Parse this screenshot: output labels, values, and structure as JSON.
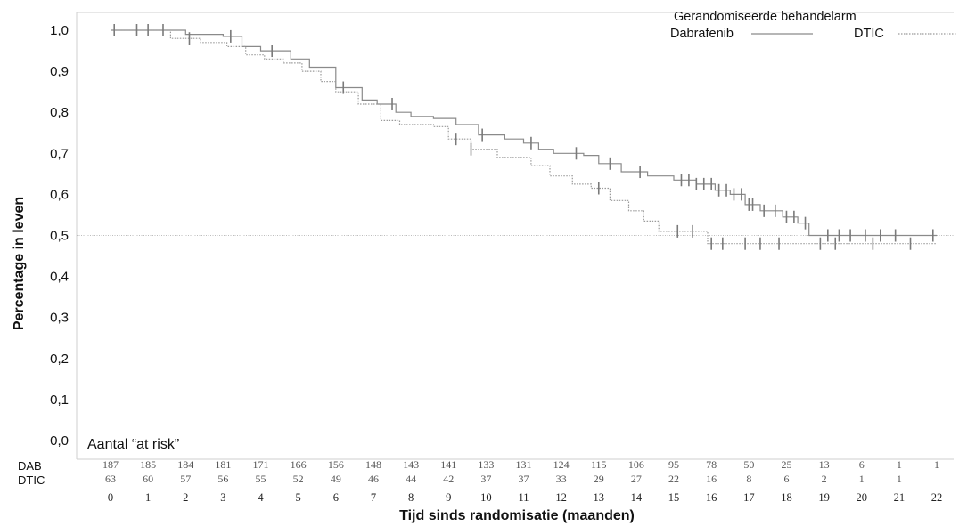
{
  "chart_data": {
    "type": "line",
    "title": "",
    "xlabel": "Tijd sinds randomisatie (maanden)",
    "ylabel": "Percentage in leven",
    "xlim": [
      0,
      22
    ],
    "ylim": [
      0,
      1
    ],
    "x_ticks": [
      "0",
      "1",
      "2",
      "3",
      "4",
      "5",
      "6",
      "7",
      "8",
      "9",
      "10",
      "11",
      "12",
      "13",
      "14",
      "15",
      "16",
      "17",
      "18",
      "19",
      "20",
      "21",
      "22"
    ],
    "y_ticks": [
      "0,0",
      "0,1",
      "0,2",
      "0,3",
      "0,4",
      "0,5",
      "0,6",
      "0,7",
      "0,8",
      "0,9",
      "1,0"
    ],
    "reference_line": 0.5,
    "legend": {
      "title": "Gerandomiseerde behandelarm",
      "position": "top-right"
    },
    "series": [
      {
        "name": "Dabrafenib",
        "style": "solid",
        "color": "#8a8a8a",
        "x": [
          0,
          1.2,
          2.0,
          3.0,
          3.5,
          4.0,
          4.8,
          5.3,
          6.0,
          6.7,
          7.1,
          7.6,
          8.0,
          8.6,
          9.2,
          9.8,
          10.5,
          11.0,
          11.4,
          11.8,
          12.6,
          13.0,
          13.6,
          14.3,
          15.0,
          15.6,
          16.1,
          16.5,
          16.9,
          17.3,
          17.9,
          18.3,
          18.6,
          22
        ],
        "y": [
          1.0,
          1.0,
          0.99,
          0.985,
          0.96,
          0.95,
          0.93,
          0.91,
          0.86,
          0.83,
          0.82,
          0.8,
          0.79,
          0.785,
          0.77,
          0.745,
          0.735,
          0.725,
          0.71,
          0.7,
          0.695,
          0.675,
          0.655,
          0.645,
          0.635,
          0.625,
          0.61,
          0.6,
          0.575,
          0.56,
          0.545,
          0.53,
          0.5,
          0.5
        ]
      },
      {
        "name": "DTIC",
        "style": "dotted",
        "color": "#9a9a9a",
        "x": [
          0,
          1.6,
          2.4,
          3.1,
          3.6,
          4.1,
          4.6,
          5.1,
          5.6,
          6.0,
          6.6,
          7.2,
          7.7,
          8.6,
          9.0,
          9.6,
          10.3,
          11.2,
          11.7,
          12.3,
          12.8,
          13.3,
          13.8,
          14.2,
          14.6,
          15.9,
          22
        ],
        "y": [
          1.0,
          0.98,
          0.97,
          0.96,
          0.94,
          0.93,
          0.92,
          0.9,
          0.875,
          0.85,
          0.82,
          0.78,
          0.77,
          0.765,
          0.735,
          0.71,
          0.69,
          0.67,
          0.645,
          0.625,
          0.615,
          0.585,
          0.56,
          0.535,
          0.51,
          0.48,
          0.48
        ]
      }
    ],
    "censor_marks": [
      {
        "series": "Dabrafenib",
        "x": [
          0.1,
          0.7,
          1.0,
          3.2,
          4.3,
          6.2,
          7.5,
          9.9,
          11.2,
          12.4,
          13.3,
          14.1,
          15.2,
          15.4,
          15.6,
          15.8,
          16.0,
          16.2,
          16.4,
          16.6,
          16.8,
          17.0,
          17.1,
          17.4,
          17.7,
          18.0,
          18.2,
          18.5,
          19.1,
          19.4,
          19.7,
          20.1,
          20.5,
          20.9,
          21.9
        ]
      },
      {
        "series": "DTIC",
        "x": [
          1.4,
          2.1,
          9.2,
          9.6,
          13.0,
          15.1,
          15.5,
          16.0,
          16.3,
          16.9,
          17.3,
          17.8,
          18.9,
          19.3,
          20.3,
          21.3
        ]
      }
    ],
    "risk_table": {
      "title": "Aantal “at risk”",
      "rows": [
        {
          "label": "DAB",
          "values": [
            "187",
            "185",
            "184",
            "181",
            "171",
            "166",
            "156",
            "148",
            "143",
            "141",
            "133",
            "131",
            "124",
            "115",
            "106",
            "95",
            "78",
            "50",
            "25",
            "13",
            "6",
            "1",
            "1"
          ]
        },
        {
          "label": "DTIC",
          "values": [
            "63",
            "60",
            "57",
            "56",
            "55",
            "52",
            "49",
            "46",
            "44",
            "42",
            "37",
            "37",
            "33",
            "29",
            "27",
            "22",
            "16",
            "8",
            "6",
            "2",
            "1",
            "1",
            ""
          ]
        }
      ]
    }
  }
}
